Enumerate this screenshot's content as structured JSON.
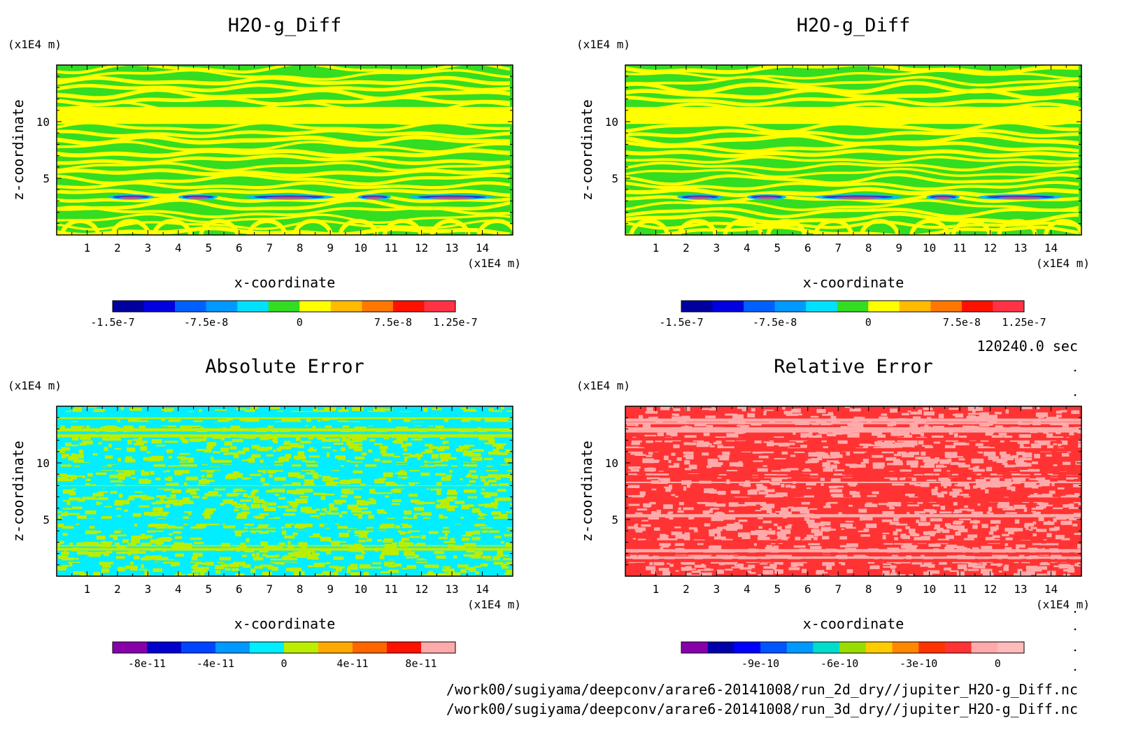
{
  "chart_data": [
    {
      "type": "heatmap",
      "title": "H2O-g_Diff",
      "xlabel": "x-coordinate",
      "ylabel": "z-coordinate",
      "x_unit": "(x1E4 m)",
      "y_unit": "(x1E4 m)",
      "xlim": [
        0,
        15
      ],
      "ylim": [
        0,
        15
      ],
      "x_ticks": [
        1,
        2,
        3,
        4,
        5,
        6,
        7,
        8,
        9,
        10,
        11,
        12,
        13,
        14
      ],
      "y_ticks": [
        5,
        10
      ],
      "colorbar": {
        "levels": [
          -1.5e-07,
          -1.25e-07,
          -1e-07,
          -7.5e-08,
          -5e-08,
          -2.5e-08,
          0,
          2.5e-08,
          5e-08,
          7.5e-08,
          1e-07,
          1.25e-07
        ],
        "colors": [
          "#0000a0",
          "#0000e0",
          "#0060ff",
          "#0099ff",
          "#00e0ff",
          "#33dd22",
          "#ffff00",
          "#ffbb00",
          "#ff7700",
          "#ff1100",
          "#ff3344"
        ],
        "tick_labels": [
          "-1.5e-7",
          "-7.5e-8",
          "0",
          "7.5e-8",
          "1.25e-7"
        ],
        "tick_values": [
          -1.5e-07,
          -7.5e-08,
          0,
          7.5e-08,
          1.25e-07
        ]
      },
      "pattern": "stripes",
      "dominant_colors": [
        "#33dd22",
        "#ffff00"
      ]
    },
    {
      "type": "heatmap",
      "title": "H2O-g_Diff",
      "xlabel": "x-coordinate",
      "ylabel": "z-coordinate",
      "x_unit": "(x1E4 m)",
      "y_unit": "(x1E4 m)",
      "xlim": [
        0,
        15
      ],
      "ylim": [
        0,
        15
      ],
      "x_ticks": [
        1,
        2,
        3,
        4,
        5,
        6,
        7,
        8,
        9,
        10,
        11,
        12,
        13,
        14
      ],
      "y_ticks": [
        5,
        10
      ],
      "colorbar": {
        "levels": [
          -1.5e-07,
          -1.25e-07,
          -1e-07,
          -7.5e-08,
          -5e-08,
          -2.5e-08,
          0,
          2.5e-08,
          5e-08,
          7.5e-08,
          1e-07,
          1.25e-07
        ],
        "colors": [
          "#0000a0",
          "#0000e0",
          "#0060ff",
          "#0099ff",
          "#00e0ff",
          "#33dd22",
          "#ffff00",
          "#ffbb00",
          "#ff7700",
          "#ff1100",
          "#ff3344"
        ],
        "tick_labels": [
          "-1.5e-7",
          "-7.5e-8",
          "0",
          "7.5e-8",
          "1.25e-7"
        ],
        "tick_values": [
          -1.5e-07,
          -7.5e-08,
          0,
          7.5e-08,
          1.25e-07
        ]
      },
      "pattern": "stripes",
      "dominant_colors": [
        "#33dd22",
        "#ffff00"
      ]
    },
    {
      "type": "heatmap",
      "title": "Absolute Error",
      "xlabel": "x-coordinate",
      "ylabel": "z-coordinate",
      "x_unit": "(x1E4 m)",
      "y_unit": "(x1E4 m)",
      "xlim": [
        0,
        15
      ],
      "ylim": [
        0,
        15
      ],
      "x_ticks": [
        1,
        2,
        3,
        4,
        5,
        6,
        7,
        8,
        9,
        10,
        11,
        12,
        13,
        14
      ],
      "y_ticks": [
        5,
        10
      ],
      "colorbar": {
        "levels": [
          -1e-10,
          -8e-11,
          -6e-11,
          -4e-11,
          -2e-11,
          0,
          2e-11,
          4e-11,
          6e-11,
          8e-11,
          1e-10
        ],
        "colors": [
          "#8800aa",
          "#0000cc",
          "#0044ff",
          "#0099ff",
          "#00eeff",
          "#bbee00",
          "#ffaa00",
          "#ff6600",
          "#ff1100",
          "#ffaaaa"
        ],
        "tick_labels": [
          "-8e-11",
          "-4e-11",
          "0",
          "4e-11",
          "8e-11"
        ],
        "tick_values": [
          -8e-11,
          -4e-11,
          0,
          4e-11,
          8e-11
        ]
      },
      "pattern": "speckle",
      "dominant_colors": [
        "#00eeff",
        "#bbee00"
      ]
    },
    {
      "type": "heatmap",
      "title": "Relative Error",
      "xlabel": "x-coordinate",
      "ylabel": "z-coordinate",
      "x_unit": "(x1E4 m)",
      "y_unit": "(x1E4 m)",
      "xlim": [
        0,
        15
      ],
      "ylim": [
        0,
        15
      ],
      "x_ticks": [
        1,
        2,
        3,
        4,
        5,
        6,
        7,
        8,
        9,
        10,
        11,
        12,
        13,
        14
      ],
      "y_ticks": [
        5,
        10
      ],
      "colorbar": {
        "levels": [
          -1.2e-09,
          -1.1e-09,
          -1e-09,
          -9e-10,
          -8e-10,
          -7e-10,
          -6e-10,
          -5e-10,
          -4e-10,
          -3e-10,
          -2e-10,
          -1e-10,
          0,
          1e-10
        ],
        "colors": [
          "#8800aa",
          "#0000aa",
          "#0000ff",
          "#0055ff",
          "#0099ff",
          "#00ddcc",
          "#99dd00",
          "#ffcc00",
          "#ff8800",
          "#ff3300",
          "#ff3333",
          "#ffaaaa",
          "#ffbbbb"
        ],
        "tick_labels": [
          "-9e-10",
          "-6e-10",
          "-3e-10",
          "0"
        ],
        "tick_values": [
          -9e-10,
          -6e-10,
          -3e-10,
          0
        ]
      },
      "pattern": "speckle",
      "dominant_colors": [
        "#ff3333",
        "#ffaaaa"
      ]
    }
  ],
  "time_label": "120240.0 sec",
  "footer_paths": [
    "/work00/sugiyama/deepconv/arare6-20141008/run_2d_dry//jupiter_H2O-g_Diff.nc",
    "/work00/sugiyama/deepconv/arare6-20141008/run_3d_dry//jupiter_H2O-g_Diff.nc"
  ]
}
